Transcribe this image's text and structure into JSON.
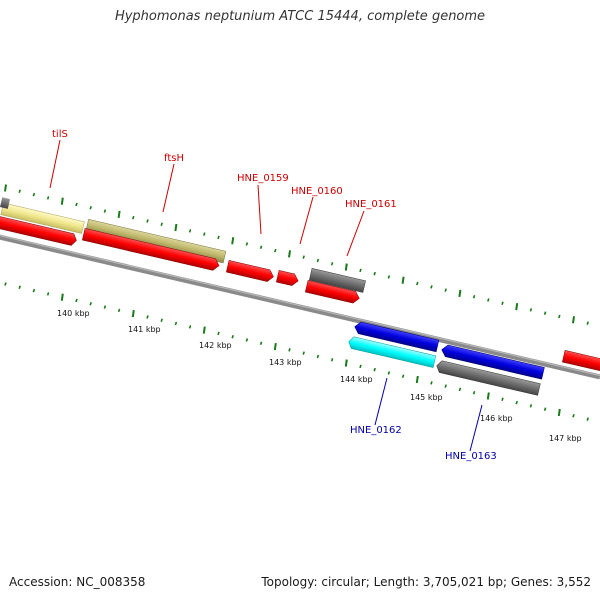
{
  "header": {
    "title": "Hyphomonas neptunium ATCC 15444, complete genome"
  },
  "footer": {
    "accession": "Accession: NC_008358",
    "summary": "Topology: circular; Length: 3,705,021 bp; Genes: 3,552"
  },
  "scale": {
    "tick_labels": [
      "140 kbp",
      "141 kbp",
      "142 kbp",
      "143 kbp",
      "144 kbp",
      "145 kbp",
      "146 kbp",
      "147 kbp"
    ]
  },
  "genes": {
    "forward_labels": [
      "tilS",
      "ftsH",
      "HNE_0159",
      "HNE_0160",
      "HNE_0161"
    ],
    "reverse_labels": [
      "HNE_0162",
      "HNE_0163"
    ]
  },
  "colors": {
    "red": "#ff0000",
    "blue": "#0000dd",
    "cyan": "#00ffff",
    "gray": "#6e6e6e",
    "khaki": "#bdb76b",
    "wheat": "#f0e68c",
    "backbone": "#8a8a8a",
    "tick": "#1a7a1a",
    "forward_label": "#cc0000",
    "reverse_label": "#0000aa"
  }
}
